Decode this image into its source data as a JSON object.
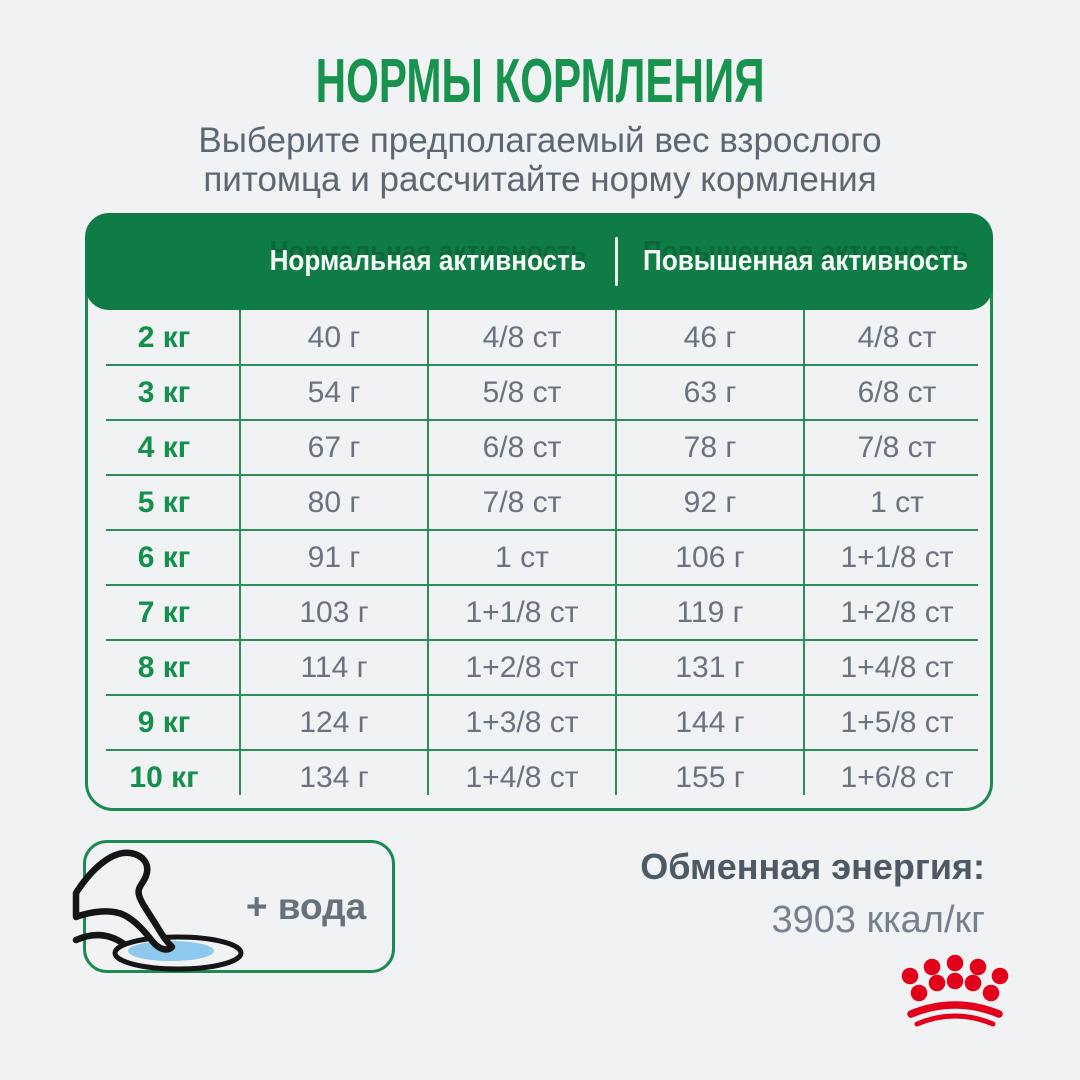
{
  "title": "НОРМЫ КОРМЛЕНИЯ",
  "subtitle_line1": "Выберите предполагаемый вес взрослого",
  "subtitle_line2": "питомца и рассчитайте норму кормления",
  "table": {
    "header_normal": "Нормальная активность",
    "header_high": "Повышенная активность",
    "rows": [
      {
        "weight": "2 кг",
        "normal_g": "40 г",
        "normal_cups": "4/8 ст",
        "high_g": "46 г",
        "high_cups": "4/8 ст"
      },
      {
        "weight": "3 кг",
        "normal_g": "54 г",
        "normal_cups": "5/8 ст",
        "high_g": "63 г",
        "high_cups": "6/8 ст"
      },
      {
        "weight": "4 кг",
        "normal_g": "67 г",
        "normal_cups": "6/8 ст",
        "high_g": "78 г",
        "high_cups": "7/8 ст"
      },
      {
        "weight": "5 кг",
        "normal_g": "80 г",
        "normal_cups": "7/8 ст",
        "high_g": "92 г",
        "high_cups": "1 ст"
      },
      {
        "weight": "6 кг",
        "normal_g": "91 г",
        "normal_cups": "1 ст",
        "high_g": "106 г",
        "high_cups": "1+1/8 ст"
      },
      {
        "weight": "7 кг",
        "normal_g": "103 г",
        "normal_cups": "1+1/8 ст",
        "high_g": "119 г",
        "high_cups": "1+2/8 ст"
      },
      {
        "weight": "8 кг",
        "normal_g": "114 г",
        "normal_cups": "1+2/8 ст",
        "high_g": "131 г",
        "high_cups": "1+4/8 ст"
      },
      {
        "weight": "9 кг",
        "normal_g": "124 г",
        "normal_cups": "1+3/8 ст",
        "high_g": "144 г",
        "high_cups": "1+5/8 ст"
      },
      {
        "weight": "10 кг",
        "normal_g": "134 г",
        "normal_cups": "1+4/8 ст",
        "high_g": "155 г",
        "high_cups": "1+6/8 ст"
      }
    ]
  },
  "water_box": {
    "label": "+ вода",
    "icon": "pet-drinking-from-bowl-icon"
  },
  "energy": {
    "label": "Обменная энергия:",
    "value": "3903 ккал/кг"
  },
  "logo": {
    "name": "royal-canin-crown",
    "color": "#e2001a"
  },
  "colors": {
    "background": "#f0f2f4",
    "title_green": "#17934e",
    "header_green": "#0e7c44",
    "border_green": "#1d8a4f",
    "line_green": "#2e8c58",
    "weight_green": "#13904c",
    "cell_gray": "#69727e",
    "subtitle_gray": "#5c6772",
    "energy_label_gray": "#4d5965",
    "energy_value_gray": "#76818d",
    "water_blue": "#8cc9ec",
    "brand_red": "#e2001a"
  }
}
